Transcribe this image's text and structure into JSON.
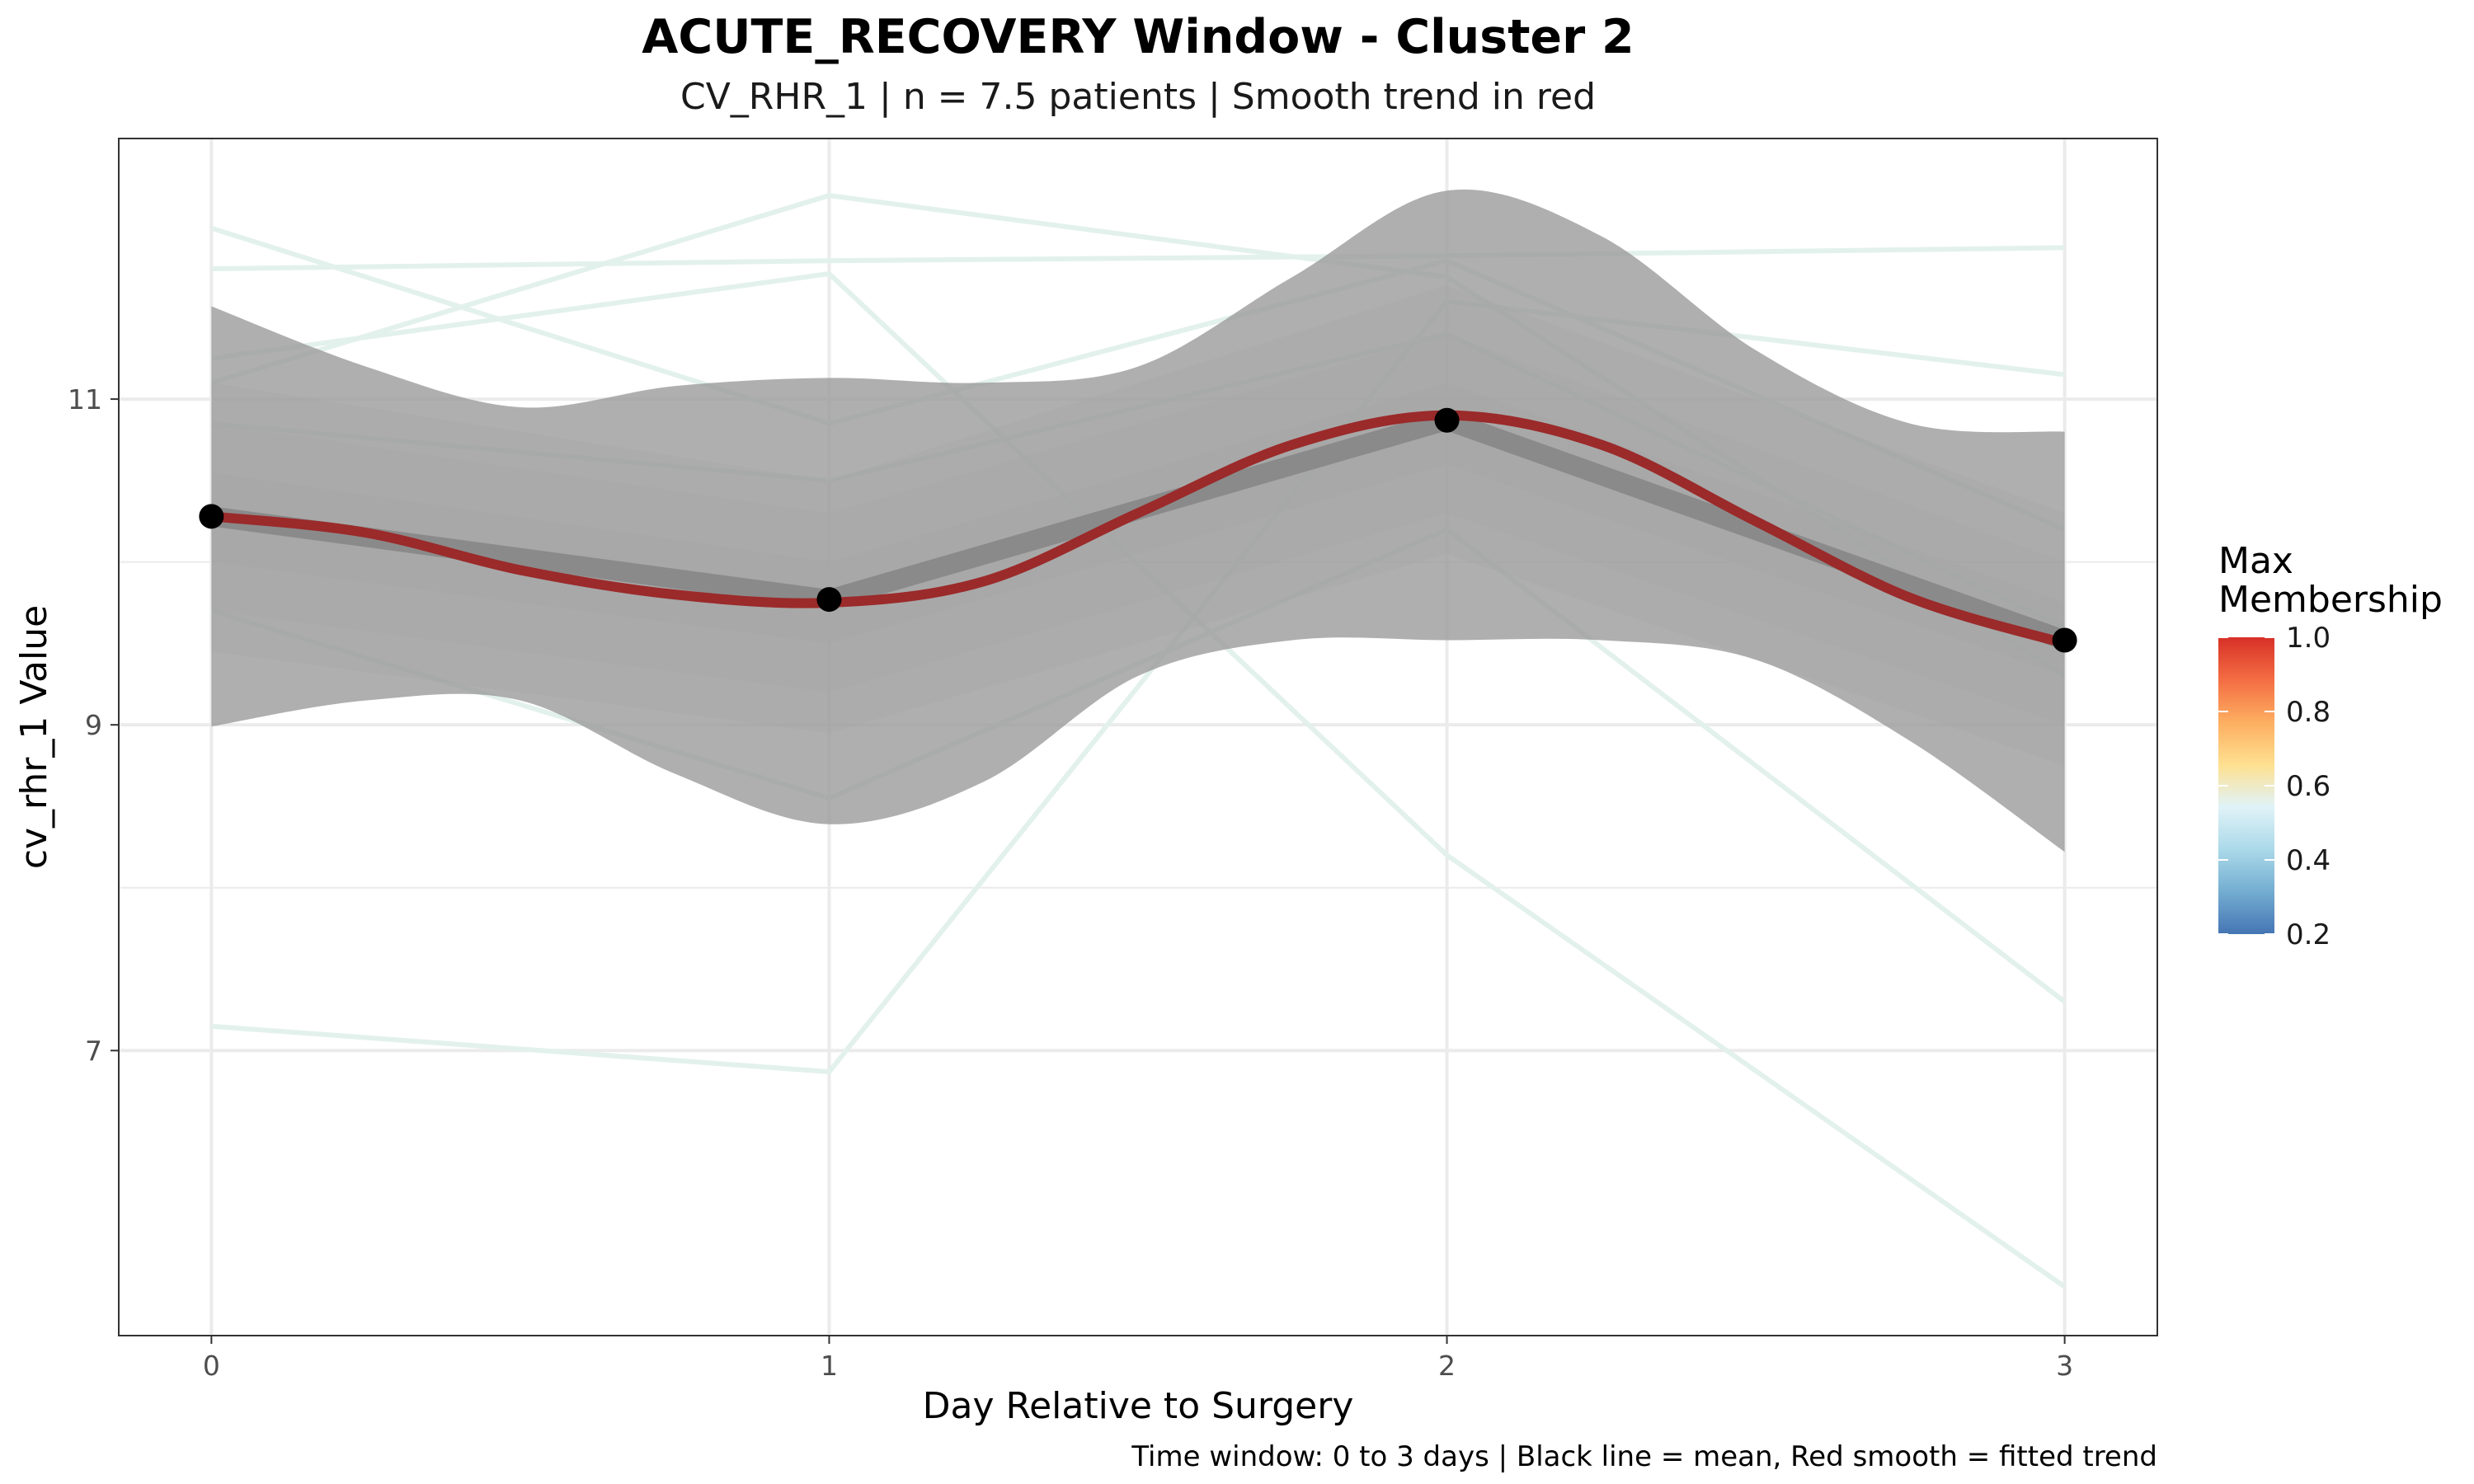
{
  "chart_data": {
    "type": "line",
    "title": "ACUTE_RECOVERY Window - Cluster 2",
    "subtitle": "CV_RHR_1 | n = 7.5 patients | Smooth trend in red",
    "xlabel": "Day Relative to Surgery",
    "ylabel": "cv_rhr_1 Value",
    "caption": "Time window: 0 to 3 days | Black line = mean, Red smooth = fitted trend",
    "xlim": [
      -0.15,
      3.15
    ],
    "ylim": [
      5.25,
      12.6
    ],
    "x_ticks": [
      0,
      1,
      2,
      3
    ],
    "x_tick_labels": [
      "0",
      "1",
      "2",
      "3"
    ],
    "y_ticks": [
      7,
      9,
      11
    ],
    "y_tick_labels": [
      "7",
      "9",
      "11"
    ],
    "grid": true,
    "colors": {
      "mean_line": "#000000",
      "smooth_line": "#9b2a2a",
      "ribbon": "#999999",
      "patient_lines": "#e3f1ec",
      "panel_border": "#333333",
      "grid": "#ebebeb"
    },
    "patient_lines": [
      {
        "x": [
          0,
          1,
          2,
          3
        ],
        "y": [
          12.05,
          10.85,
          11.85,
          10.2
        ]
      },
      {
        "x": [
          0,
          1,
          2,
          3
        ],
        "y": [
          11.8,
          11.85,
          11.88,
          11.93
        ]
      },
      {
        "x": [
          0,
          1,
          2,
          3
        ],
        "y": [
          11.25,
          11.77,
          8.2,
          5.55
        ]
      },
      {
        "x": [
          0,
          1,
          2,
          3
        ],
        "y": [
          11.1,
          12.25,
          11.75,
          9.3
        ]
      },
      {
        "x": [
          0,
          1,
          2,
          3
        ],
        "y": [
          7.15,
          6.87,
          11.6,
          11.15
        ]
      },
      {
        "x": [
          0,
          1,
          2,
          3
        ],
        "y": [
          9.7,
          8.55,
          10.2,
          7.3
        ]
      },
      {
        "x": [
          0,
          1,
          2,
          3
        ],
        "y": [
          10.85,
          10.5,
          11.4,
          9.6
        ]
      }
    ],
    "mean_series": {
      "x": [
        0,
        1,
        2,
        3
      ],
      "y": [
        10.28,
        9.77,
        10.87,
        9.52
      ]
    },
    "ribbon_lines": [
      {
        "x": [
          0,
          1,
          2,
          3
        ],
        "upper": [
          10.33,
          9.83,
          10.93,
          9.57
        ],
        "lower": [
          10.22,
          9.7,
          10.8,
          9.47
        ]
      },
      {
        "x": [
          0,
          1,
          2,
          3
        ],
        "upper": [
          10.55,
          10.0,
          11.1,
          9.75
        ],
        "lower": [
          10.0,
          9.5,
          10.6,
          9.3
        ]
      },
      {
        "x": [
          0,
          1,
          2,
          3
        ],
        "upper": [
          10.85,
          10.3,
          11.4,
          10.0
        ],
        "lower": [
          9.7,
          9.2,
          10.3,
          9.0
        ]
      },
      {
        "x": [
          0,
          1,
          2,
          3
        ],
        "upper": [
          11.1,
          10.5,
          11.7,
          10.3
        ],
        "lower": [
          9.45,
          8.95,
          10.05,
          8.75
        ]
      }
    ],
    "smooth_ribbon": {
      "x": [
        0,
        0.25,
        0.5,
        0.75,
        1,
        1.25,
        1.5,
        1.75,
        2,
        2.25,
        2.5,
        2.75,
        3
      ],
      "upper": [
        11.57,
        11.2,
        10.95,
        11.08,
        11.13,
        11.1,
        11.2,
        11.75,
        12.28,
        12.0,
        11.3,
        10.85,
        10.8
      ],
      "lower": [
        8.99,
        9.15,
        9.15,
        8.7,
        8.39,
        8.65,
        9.3,
        9.52,
        9.52,
        9.52,
        9.4,
        8.9,
        8.22
      ]
    },
    "smooth_trend": {
      "x": [
        0,
        0.25,
        0.5,
        0.75,
        1,
        1.25,
        1.5,
        1.75,
        2,
        2.25,
        2.5,
        2.75,
        3
      ],
      "y": [
        10.28,
        10.18,
        9.95,
        9.8,
        9.75,
        9.88,
        10.3,
        10.72,
        10.9,
        10.72,
        10.25,
        9.78,
        9.5
      ]
    },
    "legend": {
      "title_line1": "Max",
      "title_line2": "Membership",
      "type": "colorbar",
      "placement": "right",
      "range": [
        0.2,
        1.0
      ],
      "labels": [
        "1.0",
        "0.8",
        "0.6",
        "0.4",
        "0.2"
      ],
      "label_values": [
        1.0,
        0.8,
        0.6,
        0.4,
        0.2
      ],
      "gradient_colors": [
        "#d73027",
        "#f46d43",
        "#fdae61",
        "#fee090",
        "#e0f3f8",
        "#abd9e9",
        "#74add1",
        "#4575b4"
      ]
    }
  }
}
